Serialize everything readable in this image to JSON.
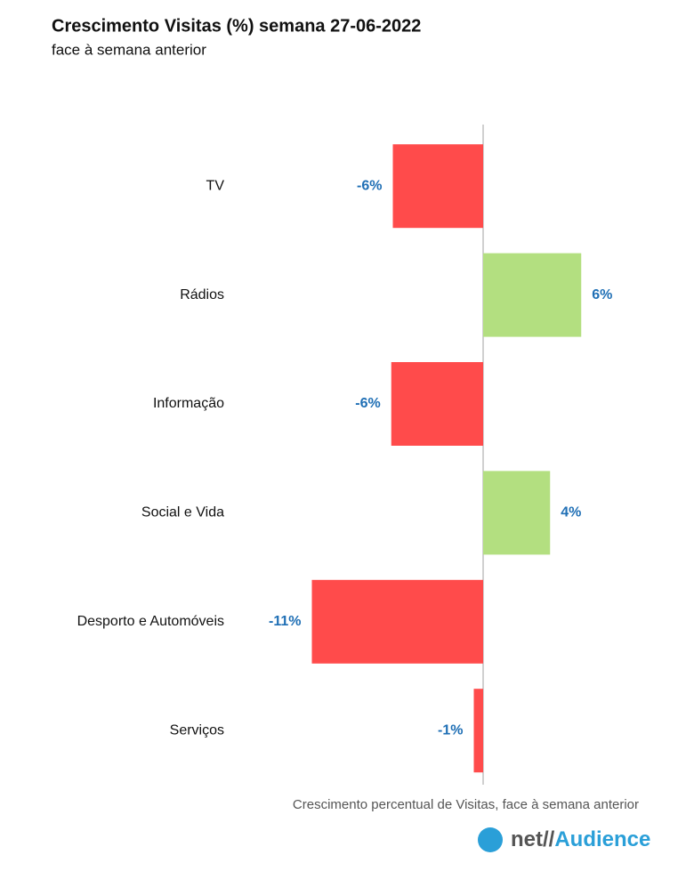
{
  "chart_data": {
    "type": "hbar",
    "title": "Crescimento Visitas (%) semana 27-06-2022",
    "subtitle": "face à semana anterior",
    "xlabel": "Crescimento percentual de Visitas, face à semana anterior",
    "categories": [
      "TV",
      "Rádios",
      "Informação",
      "Social e Vida",
      "Desporto e Automóveis",
      "Serviços"
    ],
    "values": [
      -5.8,
      6.3,
      -5.9,
      4.3,
      -11.0,
      -0.6
    ],
    "value_labels": [
      "-6%",
      "6%",
      "-6%",
      "4%",
      "-11%",
      "-1%"
    ],
    "positive_color": "#b3df80",
    "negative_color": "#ff4b4b",
    "label_color": "#1f6fb5",
    "xlim": [
      -12,
      8
    ]
  },
  "logo": {
    "prefix": "net//",
    "name": "Audience"
  }
}
